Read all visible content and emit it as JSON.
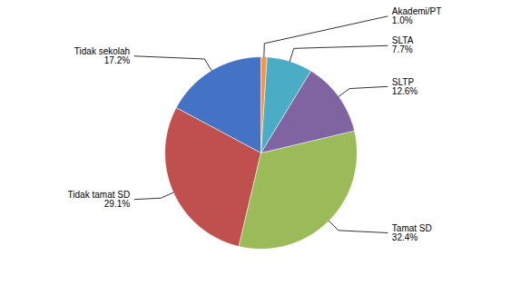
{
  "chart_data": {
    "type": "pie",
    "categories": [
      "Tidak sekolah",
      "Tidak tamat SD",
      "Tamat SD",
      "SLTP",
      "SLTA",
      "Akademi/PT"
    ],
    "values": [
      17.2,
      29.1,
      32.4,
      12.6,
      7.7,
      1.0
    ],
    "value_labels": [
      "17.2%",
      "29.1%",
      "32.4%",
      "12.6%",
      "7.7%",
      "1.0%"
    ],
    "colors": [
      "#4472C4",
      "#C0504D",
      "#9BBB59",
      "#8064A2",
      "#4BACC6",
      "#F79646"
    ],
    "data_labels": true
  }
}
